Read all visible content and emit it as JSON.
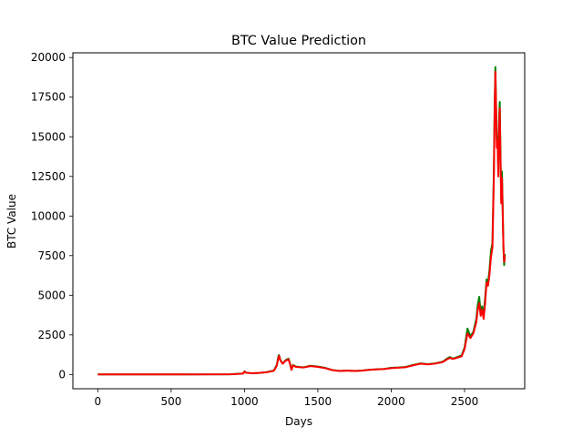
{
  "chart_data": {
    "type": "line",
    "title": "BTC Value Prediction",
    "xlabel": "Days",
    "ylabel": "BTC Value",
    "xlim": [
      -170,
      2910
    ],
    "ylim": [
      -900,
      20300
    ],
    "x_ticks": [
      0,
      500,
      1000,
      1500,
      2000,
      2500
    ],
    "y_ticks": [
      0,
      2500,
      5000,
      7500,
      10000,
      12500,
      15000,
      17500,
      20000
    ],
    "grid": false,
    "legend": "none",
    "series": [
      {
        "color": "#008000",
        "points": [
          [
            0,
            5
          ],
          [
            300,
            6
          ],
          [
            600,
            5
          ],
          [
            900,
            10
          ],
          [
            990,
            60
          ],
          [
            1000,
            200
          ],
          [
            1010,
            120
          ],
          [
            1050,
            80
          ],
          [
            1100,
            100
          ],
          [
            1150,
            150
          ],
          [
            1200,
            250
          ],
          [
            1220,
            600
          ],
          [
            1230,
            1100
          ],
          [
            1235,
            1230
          ],
          [
            1245,
            900
          ],
          [
            1260,
            700
          ],
          [
            1280,
            900
          ],
          [
            1300,
            1000
          ],
          [
            1310,
            700
          ],
          [
            1320,
            300
          ],
          [
            1330,
            600
          ],
          [
            1350,
            500
          ],
          [
            1400,
            450
          ],
          [
            1450,
            550
          ],
          [
            1500,
            500
          ],
          [
            1550,
            420
          ],
          [
            1600,
            280
          ],
          [
            1650,
            230
          ],
          [
            1700,
            250
          ],
          [
            1750,
            230
          ],
          [
            1800,
            250
          ],
          [
            1850,
            300
          ],
          [
            1900,
            330
          ],
          [
            1950,
            350
          ],
          [
            2000,
            420
          ],
          [
            2050,
            440
          ],
          [
            2100,
            480
          ],
          [
            2150,
            600
          ],
          [
            2200,
            700
          ],
          [
            2250,
            650
          ],
          [
            2300,
            700
          ],
          [
            2350,
            800
          ],
          [
            2380,
            1000
          ],
          [
            2400,
            1100
          ],
          [
            2420,
            1000
          ],
          [
            2450,
            1100
          ],
          [
            2480,
            1200
          ],
          [
            2500,
            1700
          ],
          [
            2520,
            2900
          ],
          [
            2540,
            2400
          ],
          [
            2560,
            2700
          ],
          [
            2580,
            3500
          ],
          [
            2590,
            4400
          ],
          [
            2600,
            4900
          ],
          [
            2610,
            3900
          ],
          [
            2620,
            4300
          ],
          [
            2630,
            3700
          ],
          [
            2640,
            4800
          ],
          [
            2650,
            6000
          ],
          [
            2660,
            5800
          ],
          [
            2670,
            6600
          ],
          [
            2680,
            7800
          ],
          [
            2690,
            8300
          ],
          [
            2700,
            13000
          ],
          [
            2705,
            16900
          ],
          [
            2710,
            19400
          ],
          [
            2715,
            17000
          ],
          [
            2720,
            14800
          ],
          [
            2725,
            15000
          ],
          [
            2730,
            12900
          ],
          [
            2735,
            16000
          ],
          [
            2740,
            17200
          ],
          [
            2745,
            14000
          ],
          [
            2750,
            11000
          ],
          [
            2755,
            12800
          ],
          [
            2760,
            10500
          ],
          [
            2765,
            8000
          ],
          [
            2770,
            6900
          ],
          [
            2775,
            7600
          ]
        ]
      },
      {
        "color": "#ff0000",
        "points": [
          [
            0,
            5
          ],
          [
            300,
            6
          ],
          [
            600,
            5
          ],
          [
            900,
            10
          ],
          [
            990,
            55
          ],
          [
            1000,
            180
          ],
          [
            1010,
            110
          ],
          [
            1050,
            75
          ],
          [
            1100,
            95
          ],
          [
            1150,
            140
          ],
          [
            1200,
            230
          ],
          [
            1220,
            560
          ],
          [
            1230,
            1000
          ],
          [
            1235,
            1180
          ],
          [
            1245,
            880
          ],
          [
            1260,
            680
          ],
          [
            1280,
            870
          ],
          [
            1300,
            950
          ],
          [
            1310,
            680
          ],
          [
            1320,
            290
          ],
          [
            1330,
            570
          ],
          [
            1350,
            480
          ],
          [
            1400,
            440
          ],
          [
            1450,
            530
          ],
          [
            1500,
            480
          ],
          [
            1550,
            400
          ],
          [
            1600,
            270
          ],
          [
            1650,
            220
          ],
          [
            1700,
            240
          ],
          [
            1750,
            220
          ],
          [
            1800,
            240
          ],
          [
            1850,
            290
          ],
          [
            1900,
            320
          ],
          [
            1950,
            340
          ],
          [
            2000,
            400
          ],
          [
            2050,
            430
          ],
          [
            2100,
            460
          ],
          [
            2150,
            580
          ],
          [
            2200,
            680
          ],
          [
            2250,
            640
          ],
          [
            2300,
            690
          ],
          [
            2350,
            780
          ],
          [
            2380,
            950
          ],
          [
            2400,
            1050
          ],
          [
            2420,
            980
          ],
          [
            2450,
            1060
          ],
          [
            2480,
            1150
          ],
          [
            2500,
            1600
          ],
          [
            2520,
            2600
          ],
          [
            2540,
            2300
          ],
          [
            2560,
            2600
          ],
          [
            2580,
            3300
          ],
          [
            2590,
            4100
          ],
          [
            2600,
            4500
          ],
          [
            2610,
            3700
          ],
          [
            2620,
            4100
          ],
          [
            2630,
            3500
          ],
          [
            2640,
            4500
          ],
          [
            2650,
            5800
          ],
          [
            2660,
            5600
          ],
          [
            2670,
            6300
          ],
          [
            2680,
            7400
          ],
          [
            2690,
            8000
          ],
          [
            2700,
            12500
          ],
          [
            2705,
            16500
          ],
          [
            2710,
            19100
          ],
          [
            2715,
            16800
          ],
          [
            2720,
            14300
          ],
          [
            2725,
            14700
          ],
          [
            2730,
            12500
          ],
          [
            2735,
            15500
          ],
          [
            2740,
            16800
          ],
          [
            2745,
            13600
          ],
          [
            2750,
            10800
          ],
          [
            2755,
            12400
          ],
          [
            2760,
            10200
          ],
          [
            2765,
            8100
          ],
          [
            2770,
            7100
          ],
          [
            2775,
            7500
          ]
        ]
      }
    ]
  }
}
